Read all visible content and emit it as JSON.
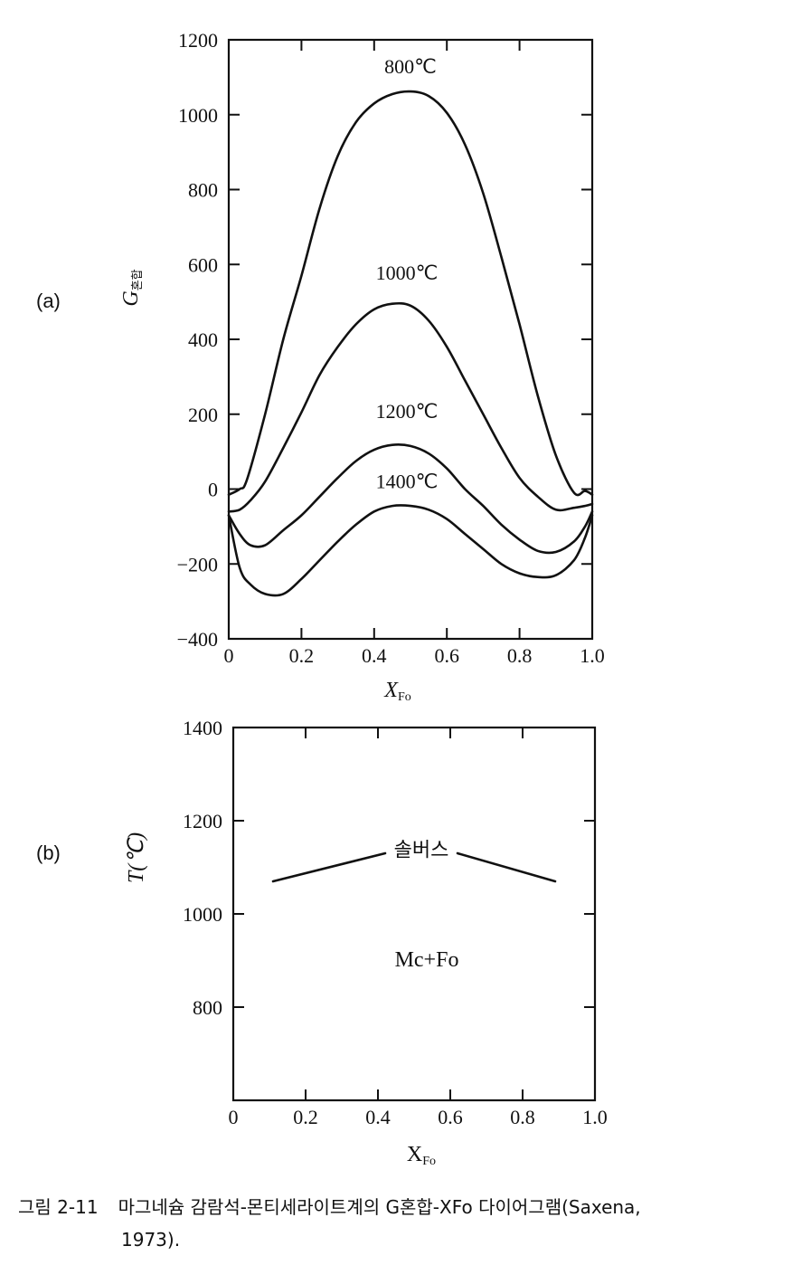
{
  "panels": {
    "a_label": "(a)",
    "b_label": "(b)"
  },
  "chart_data": [
    {
      "type": "line",
      "ylabel": "G혼합",
      "xlabel": "X",
      "xlabel_sub": "Fo",
      "xlim": [
        0,
        1
      ],
      "ylim": [
        -400,
        1200
      ],
      "x_ticks": [
        "0",
        "0.2",
        "0.4",
        "0.6",
        "0.8",
        "1.0"
      ],
      "y_ticks": [
        "1200",
        "1000",
        "800",
        "600",
        "400",
        "200",
        "0",
        "−200",
        "−400"
      ],
      "series": [
        {
          "name": "800℃",
          "x": [
            0,
            0.03,
            0.05,
            0.1,
            0.15,
            0.2,
            0.25,
            0.3,
            0.35,
            0.4,
            0.45,
            0.5,
            0.55,
            0.6,
            0.65,
            0.7,
            0.75,
            0.8,
            0.85,
            0.9,
            0.95,
            0.98,
            1.0
          ],
          "y": [
            -15,
            0,
            25,
            200,
            400,
            570,
            750,
            890,
            980,
            1030,
            1055,
            1062,
            1050,
            1005,
            920,
            790,
            620,
            440,
            250,
            90,
            -10,
            -5,
            -15
          ]
        },
        {
          "name": "1000℃",
          "x": [
            0,
            0.03,
            0.06,
            0.1,
            0.15,
            0.2,
            0.25,
            0.3,
            0.35,
            0.4,
            0.45,
            0.5,
            0.55,
            0.6,
            0.65,
            0.7,
            0.75,
            0.8,
            0.85,
            0.9,
            0.95,
            0.98,
            1.0
          ],
          "y": [
            -60,
            -55,
            -30,
            20,
            110,
            205,
            305,
            380,
            440,
            480,
            495,
            490,
            450,
            380,
            290,
            200,
            110,
            30,
            -20,
            -55,
            -50,
            -45,
            -40
          ]
        },
        {
          "name": "1200℃",
          "x": [
            0,
            0.03,
            0.06,
            0.1,
            0.15,
            0.2,
            0.25,
            0.3,
            0.35,
            0.4,
            0.45,
            0.5,
            0.55,
            0.6,
            0.65,
            0.7,
            0.75,
            0.8,
            0.85,
            0.9,
            0.95,
            0.98,
            1.0
          ],
          "y": [
            -70,
            -120,
            -150,
            -150,
            -110,
            -70,
            -20,
            30,
            75,
            105,
            118,
            115,
            95,
            55,
            0,
            -45,
            -95,
            -135,
            -165,
            -168,
            -140,
            -100,
            -60
          ]
        },
        {
          "name": "1400℃",
          "x": [
            0,
            0.03,
            0.06,
            0.1,
            0.15,
            0.2,
            0.25,
            0.3,
            0.35,
            0.4,
            0.45,
            0.5,
            0.55,
            0.6,
            0.65,
            0.7,
            0.75,
            0.8,
            0.85,
            0.9,
            0.95,
            0.98,
            1.0
          ],
          "y": [
            -70,
            -210,
            -255,
            -280,
            -280,
            -240,
            -190,
            -140,
            -95,
            -60,
            -45,
            -45,
            -55,
            -80,
            -120,
            -160,
            -200,
            -225,
            -235,
            -230,
            -190,
            -130,
            -70
          ]
        }
      ]
    },
    {
      "type": "line",
      "ylabel": "T(℃)",
      "xlabel": "X",
      "xlabel_sub": "Fo",
      "xlim": [
        0,
        1
      ],
      "ylim": [
        600,
        1400
      ],
      "x_ticks": [
        "0",
        "0.2",
        "0.4",
        "0.6",
        "0.8",
        "1.0"
      ],
      "y_ticks": [
        "1400",
        "1200",
        "1000",
        "800"
      ],
      "y_tick_positions_unlabeled": [
        600
      ],
      "series": [
        {
          "name": "솔버스",
          "x": [
            0.11,
            0.42,
            0.62,
            0.89
          ],
          "y": [
            1070,
            1130,
            1130,
            1070
          ]
        }
      ],
      "annotations": [
        "Mc+Fo"
      ]
    }
  ],
  "caption": {
    "number": "그림 2-11",
    "text": "마그네슘 감람석-몬티세라이트계의 G혼합-XFo 다이어그램(Saxena,",
    "text_line2": "1973)."
  }
}
